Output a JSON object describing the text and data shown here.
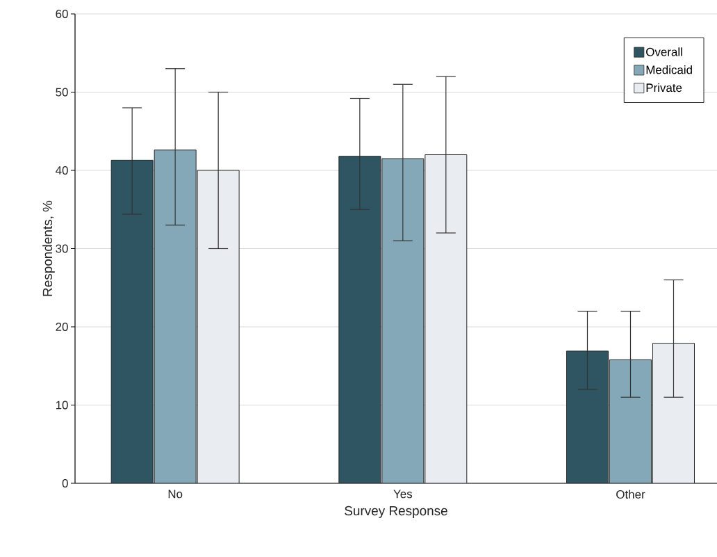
{
  "chart_data": {
    "type": "bar",
    "xlabel": "Survey Response",
    "ylabel": "Respondents, %",
    "categories": [
      "No",
      "Yes",
      "Other"
    ],
    "series": [
      {
        "name": "Overall",
        "color": "#2e5561",
        "values": [
          41.3,
          41.8,
          16.9
        ],
        "errors": [
          [
            34.4,
            48
          ],
          [
            35,
            49.2
          ],
          [
            12,
            22
          ]
        ]
      },
      {
        "name": "Medicaid",
        "color": "#85a8b8",
        "values": [
          42.6,
          41.5,
          15.8
        ],
        "errors": [
          [
            33,
            53
          ],
          [
            31,
            51
          ],
          [
            11,
            22
          ]
        ]
      },
      {
        "name": "Private",
        "color": "#e9edf2",
        "values": [
          40,
          42,
          17.9
        ],
        "errors": [
          [
            30,
            50
          ],
          [
            32,
            52
          ],
          [
            11,
            26
          ]
        ]
      }
    ],
    "ylim": [
      0,
      60
    ],
    "yticks": [
      0,
      10,
      20,
      30,
      40,
      50,
      60
    ],
    "grid": "y",
    "legend": "top right"
  }
}
